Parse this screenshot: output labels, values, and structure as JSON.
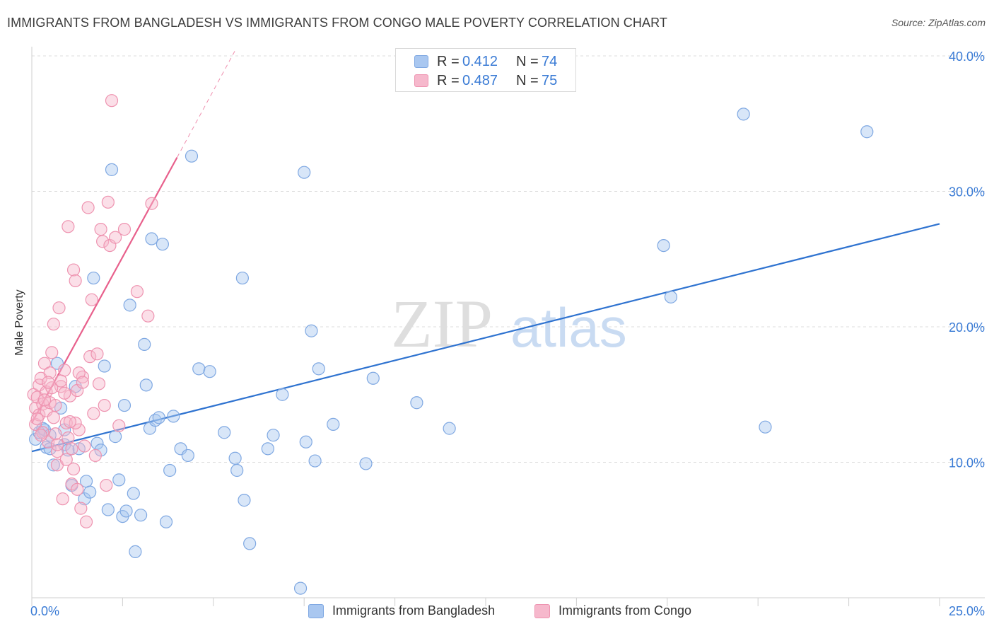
{
  "title": "IMMIGRANTS FROM BANGLADESH VS IMMIGRANTS FROM CONGO MALE POVERTY CORRELATION CHART",
  "source": "Source: ZipAtlas.com",
  "watermark": {
    "zip": "ZIP",
    "atlas": "atlas"
  },
  "legend_top": {
    "rows": [
      {
        "r_label": "R =",
        "r_value": "0.412",
        "n_label": "N =",
        "n_value": "74"
      },
      {
        "r_label": "R =",
        "r_value": "0.487",
        "n_label": "N =",
        "n_value": "75"
      }
    ]
  },
  "legend_bottom": {
    "bangladesh": "Immigrants from Bangladesh",
    "congo": "Immigrants from Congo"
  },
  "colors": {
    "blue_fill": "#a9c7f0",
    "blue_stroke": "#7fa8e2",
    "blue_line": "#2f73d0",
    "pink_fill": "#f6b8cc",
    "pink_stroke": "#ee93b0",
    "pink_line": "#e8608c",
    "axis_text": "#3a7bd5",
    "grid": "#dcdcdc"
  },
  "chart_data": {
    "type": "scatter",
    "title": "IMMIGRANTS FROM BANGLADESH VS IMMIGRANTS FROM CONGO MALE POVERTY CORRELATION CHART",
    "xlabel": "",
    "ylabel": "Male Poverty",
    "xlim": [
      0,
      25
    ],
    "ylim": [
      0,
      40
    ],
    "x_tick_labels": {
      "min": "0.0%",
      "max": "25.0%"
    },
    "y_ticks": [
      {
        "value": 10,
        "label": "10.0%"
      },
      {
        "value": 20,
        "label": "20.0%"
      },
      {
        "value": 30,
        "label": "30.0%"
      },
      {
        "value": 40,
        "label": "40.0%"
      }
    ],
    "series": [
      {
        "name": "Immigrants from Bangladesh",
        "color": "blue",
        "trend": {
          "x0": 0,
          "y0": 10.8,
          "x1": 25,
          "y1": 27.6,
          "dashed_to": null
        },
        "points": [
          [
            0.1,
            11.7
          ],
          [
            0.2,
            12.2
          ],
          [
            0.3,
            12.5
          ],
          [
            0.35,
            12.4
          ],
          [
            0.4,
            11.1
          ],
          [
            0.5,
            11.0
          ],
          [
            0.5,
            12.0
          ],
          [
            0.6,
            9.8
          ],
          [
            0.7,
            17.3
          ],
          [
            0.8,
            14.0
          ],
          [
            0.9,
            12.4
          ],
          [
            0.9,
            11.3
          ],
          [
            1.0,
            10.9
          ],
          [
            1.1,
            8.3
          ],
          [
            1.2,
            15.6
          ],
          [
            1.3,
            11.0
          ],
          [
            1.45,
            7.3
          ],
          [
            1.5,
            8.6
          ],
          [
            1.6,
            7.8
          ],
          [
            1.7,
            23.6
          ],
          [
            1.8,
            11.4
          ],
          [
            1.9,
            10.9
          ],
          [
            2.0,
            17.1
          ],
          [
            2.1,
            6.5
          ],
          [
            2.2,
            31.6
          ],
          [
            2.3,
            11.9
          ],
          [
            2.4,
            8.7
          ],
          [
            2.5,
            6.0
          ],
          [
            2.55,
            14.2
          ],
          [
            2.6,
            6.4
          ],
          [
            2.7,
            21.6
          ],
          [
            2.8,
            7.7
          ],
          [
            2.85,
            3.4
          ],
          [
            3.0,
            6.1
          ],
          [
            3.1,
            18.7
          ],
          [
            3.15,
            15.7
          ],
          [
            3.25,
            12.5
          ],
          [
            3.3,
            26.5
          ],
          [
            3.4,
            13.1
          ],
          [
            3.5,
            13.3
          ],
          [
            3.6,
            26.1
          ],
          [
            3.7,
            5.6
          ],
          [
            3.8,
            9.4
          ],
          [
            3.9,
            13.4
          ],
          [
            4.1,
            11.0
          ],
          [
            4.3,
            10.5
          ],
          [
            4.4,
            32.6
          ],
          [
            4.6,
            16.9
          ],
          [
            4.9,
            16.7
          ],
          [
            5.3,
            12.2
          ],
          [
            5.6,
            10.3
          ],
          [
            5.65,
            9.4
          ],
          [
            5.8,
            23.6
          ],
          [
            5.85,
            7.2
          ],
          [
            6.0,
            4.0
          ],
          [
            6.5,
            11.0
          ],
          [
            6.65,
            12.0
          ],
          [
            6.9,
            15.0
          ],
          [
            7.4,
            0.7
          ],
          [
            7.5,
            31.4
          ],
          [
            7.55,
            11.5
          ],
          [
            7.7,
            19.7
          ],
          [
            7.8,
            10.1
          ],
          [
            7.9,
            16.9
          ],
          [
            8.3,
            12.8
          ],
          [
            9.2,
            9.9
          ],
          [
            9.4,
            16.2
          ],
          [
            10.6,
            14.4
          ],
          [
            11.5,
            12.5
          ],
          [
            17.4,
            26.0
          ],
          [
            17.6,
            22.2
          ],
          [
            19.6,
            35.7
          ],
          [
            20.2,
            12.6
          ],
          [
            23.0,
            34.4
          ]
        ]
      },
      {
        "name": "Immigrants from Congo",
        "color": "pink",
        "trend": {
          "x0": 0,
          "y0": 12.9,
          "x1": 4.0,
          "y1": 32.5,
          "dashed_to": {
            "x": 5.6,
            "y": 40.4
          }
        },
        "points": [
          [
            0.05,
            15.0
          ],
          [
            0.1,
            14.0
          ],
          [
            0.1,
            12.8
          ],
          [
            0.15,
            14.8
          ],
          [
            0.2,
            13.5
          ],
          [
            0.2,
            15.7
          ],
          [
            0.25,
            16.2
          ],
          [
            0.3,
            14.3
          ],
          [
            0.3,
            12.2
          ],
          [
            0.35,
            17.3
          ],
          [
            0.4,
            15.2
          ],
          [
            0.4,
            13.8
          ],
          [
            0.45,
            11.5
          ],
          [
            0.5,
            16.6
          ],
          [
            0.5,
            14.4
          ],
          [
            0.55,
            18.1
          ],
          [
            0.6,
            20.2
          ],
          [
            0.6,
            13.3
          ],
          [
            0.65,
            12.1
          ],
          [
            0.7,
            10.8
          ],
          [
            0.7,
            9.8
          ],
          [
            0.75,
            21.4
          ],
          [
            0.8,
            15.6
          ],
          [
            0.85,
            7.3
          ],
          [
            0.9,
            16.8
          ],
          [
            0.95,
            12.9
          ],
          [
            1.0,
            27.4
          ],
          [
            1.05,
            14.9
          ],
          [
            1.1,
            11.0
          ],
          [
            1.1,
            8.4
          ],
          [
            1.15,
            24.2
          ],
          [
            1.2,
            23.4
          ],
          [
            1.25,
            15.3
          ],
          [
            1.3,
            12.4
          ],
          [
            1.35,
            6.6
          ],
          [
            1.4,
            16.3
          ],
          [
            1.45,
            11.2
          ],
          [
            1.5,
            5.6
          ],
          [
            1.55,
            28.8
          ],
          [
            1.6,
            17.8
          ],
          [
            1.65,
            22.0
          ],
          [
            1.7,
            13.6
          ],
          [
            1.75,
            10.5
          ],
          [
            1.8,
            18.0
          ],
          [
            1.85,
            15.8
          ],
          [
            1.9,
            27.2
          ],
          [
            1.95,
            26.3
          ],
          [
            2.0,
            14.2
          ],
          [
            2.05,
            8.3
          ],
          [
            2.1,
            29.2
          ],
          [
            2.15,
            26.0
          ],
          [
            2.2,
            36.7
          ],
          [
            2.3,
            26.6
          ],
          [
            2.4,
            12.7
          ],
          [
            2.55,
            27.2
          ],
          [
            2.9,
            22.6
          ],
          [
            3.2,
            20.8
          ],
          [
            3.3,
            29.1
          ],
          [
            0.55,
            15.5
          ],
          [
            0.65,
            14.2
          ],
          [
            0.8,
            16.0
          ],
          [
            0.9,
            15.1
          ],
          [
            1.0,
            11.8
          ],
          [
            1.2,
            12.9
          ],
          [
            1.3,
            16.6
          ],
          [
            1.4,
            15.9
          ],
          [
            0.15,
            13.2
          ],
          [
            0.25,
            12.0
          ],
          [
            0.35,
            14.6
          ],
          [
            0.45,
            15.9
          ],
          [
            0.7,
            11.3
          ],
          [
            0.95,
            10.2
          ],
          [
            1.05,
            13.0
          ],
          [
            1.15,
            9.5
          ],
          [
            1.25,
            8.0
          ]
        ]
      }
    ]
  }
}
